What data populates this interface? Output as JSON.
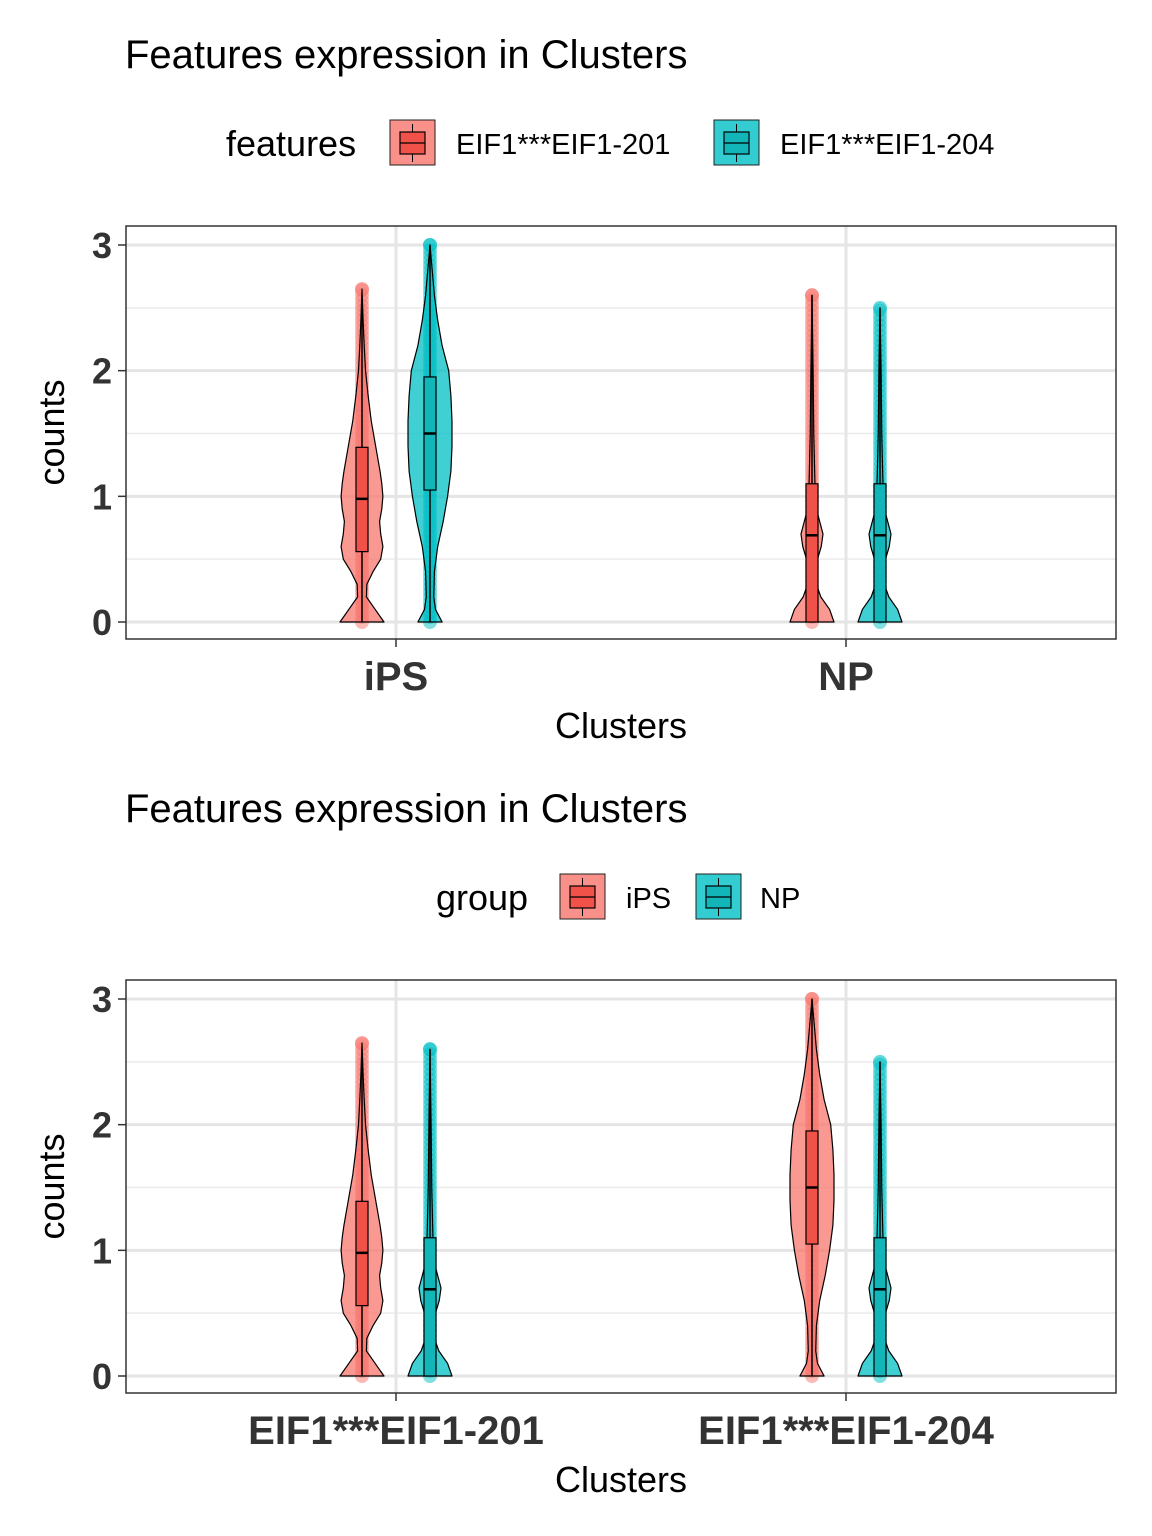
{
  "colors": {
    "red": "#F8766D",
    "teal": "#00BFC4"
  },
  "chart_data": [
    {
      "type": "violin",
      "title": "Features expression in Clusters",
      "xlabel": "Clusters",
      "ylabel": "counts",
      "ylim": [
        0,
        3
      ],
      "yticks": [
        "0",
        "1",
        "2",
        "3"
      ],
      "legend": {
        "title": "features",
        "placement": "top",
        "entries": [
          "EIF1***EIF1-201",
          "EIF1***EIF1-204"
        ]
      },
      "categories": [
        "iPS",
        "NP"
      ],
      "series": [
        {
          "name": "EIF1***EIF1-201",
          "color": "red",
          "groups": [
            "iPS_201",
            "NP_201"
          ]
        },
        {
          "name": "EIF1***EIF1-204",
          "color": "teal",
          "groups": [
            "iPS_204",
            "NP_204"
          ]
        }
      ]
    },
    {
      "type": "violin",
      "title": "Features expression in Clusters",
      "xlabel": "Clusters",
      "ylabel": "counts",
      "ylim": [
        0,
        3
      ],
      "yticks": [
        "0",
        "1",
        "2",
        "3"
      ],
      "legend": {
        "title": "group",
        "placement": "top",
        "entries": [
          "iPS",
          "NP"
        ]
      },
      "categories": [
        "EIF1***EIF1-201",
        "EIF1***EIF1-204"
      ],
      "series": [
        {
          "name": "iPS",
          "color": "red",
          "groups": [
            "iPS_201",
            "iPS_204"
          ]
        },
        {
          "name": "NP",
          "color": "teal",
          "groups": [
            "NP_201",
            "NP_204"
          ]
        }
      ]
    }
  ],
  "distributions": {
    "iPS_201": {
      "q1": 0.56,
      "median": 0.98,
      "q3": 1.39,
      "whisker_low": 0,
      "whisker_high": 2.52,
      "max": 2.65,
      "density_y": [
        0,
        0.1,
        0.2,
        0.3,
        0.4,
        0.5,
        0.6,
        0.7,
        0.8,
        0.9,
        1.0,
        1.1,
        1.2,
        1.4,
        1.6,
        1.8,
        2.0,
        2.2,
        2.4,
        2.65
      ],
      "density_w": [
        1.0,
        0.6,
        0.2,
        0.22,
        0.5,
        0.85,
        0.95,
        0.85,
        0.8,
        0.9,
        0.95,
        0.9,
        0.82,
        0.62,
        0.42,
        0.28,
        0.16,
        0.1,
        0.05,
        0
      ]
    },
    "iPS_204": {
      "q1": 1.05,
      "median": 1.5,
      "q3": 1.95,
      "whisker_low": 0,
      "whisker_high": 3.0,
      "max": 3.0,
      "density_y": [
        0,
        0.1,
        0.2,
        0.4,
        0.6,
        0.8,
        1.0,
        1.2,
        1.4,
        1.6,
        1.8,
        2.0,
        2.2,
        2.4,
        2.6,
        2.8,
        3.0
      ],
      "density_w": [
        0.55,
        0.25,
        0.17,
        0.2,
        0.35,
        0.6,
        0.8,
        0.95,
        1.0,
        1.0,
        0.95,
        0.85,
        0.55,
        0.35,
        0.2,
        0.1,
        0
      ]
    },
    "NP_201": {
      "q1": 0,
      "median": 0.69,
      "q3": 1.1,
      "whisker_low": 0,
      "whisker_high": 2.6,
      "max": 2.6,
      "density_y": [
        0,
        0.1,
        0.2,
        0.3,
        0.4,
        0.5,
        0.6,
        0.7,
        0.8,
        0.9,
        1.0,
        1.2,
        1.5,
        2.0,
        2.6
      ],
      "density_w": [
        1.0,
        0.8,
        0.4,
        0.2,
        0.15,
        0.25,
        0.42,
        0.5,
        0.35,
        0.2,
        0.15,
        0.12,
        0.08,
        0.05,
        0
      ]
    },
    "NP_204": {
      "q1": 0,
      "median": 0.69,
      "q3": 1.1,
      "whisker_low": 0,
      "whisker_high": 2.5,
      "max": 2.5,
      "density_y": [
        0,
        0.1,
        0.2,
        0.3,
        0.4,
        0.5,
        0.6,
        0.7,
        0.8,
        0.9,
        1.0,
        1.2,
        1.5,
        2.0,
        2.5
      ],
      "density_w": [
        1.0,
        0.8,
        0.4,
        0.2,
        0.15,
        0.25,
        0.42,
        0.5,
        0.35,
        0.2,
        0.15,
        0.12,
        0.08,
        0.05,
        0
      ]
    }
  }
}
